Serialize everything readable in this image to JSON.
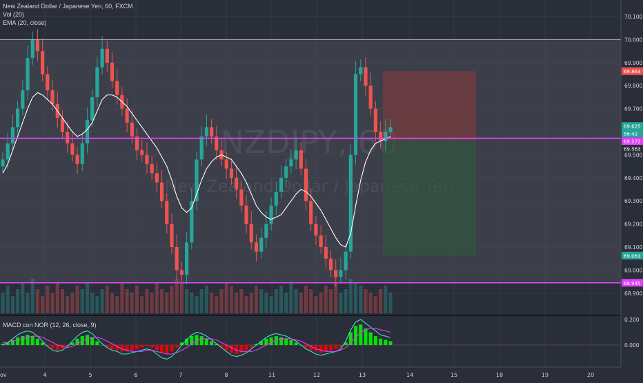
{
  "header": {
    "title": "New Zealand Dollar / Japanese Yen, 60, FXCM",
    "indicator_vol": "Vol (20)",
    "indicator_ema": "EMA (20, close)"
  },
  "watermark": {
    "symbol": "NZDJPY, 60",
    "name": "New Zealand Dollar / Japanese Yen"
  },
  "macd_panel": {
    "label": "MACD con NOR (12, 26, close, 9)"
  },
  "colors": {
    "background": "#2a2e39",
    "up_candle": "#26a69a",
    "down_candle": "#ef5350",
    "range_box": "#4a4e5a",
    "support_resistance": "#e040fb",
    "ema": "#ffffff",
    "macd_line": "#40e0d0",
    "signal_line": "#e040fb",
    "hist_pos": "#00ff00",
    "hist_neg": "#ff0000",
    "position_stop": "#8b3a3a",
    "position_target": "#2e5a3e"
  },
  "chart_data": [
    {
      "type": "candlestick",
      "title": "New Zealand Dollar / Japanese Yen, 60, FXCM",
      "x_tick_labels": [
        "ov",
        "4",
        "5",
        "6",
        "7",
        "8",
        "11",
        "12",
        "13",
        "14",
        "15",
        "18",
        "19",
        "20"
      ],
      "y_tick_labels": [
        "70.100",
        "70.000",
        "69.900",
        "69.800",
        "69.700",
        "69.600",
        "69.500",
        "69.400",
        "69.300",
        "69.200",
        "69.100",
        "69.000",
        "68.900"
      ],
      "ylim": [
        68.86,
        70.15
      ],
      "grid": true,
      "lines": [
        {
          "name": "range-top",
          "value": 70.0
        },
        {
          "name": "resistance",
          "value": 69.572
        },
        {
          "name": "support",
          "value": 68.945
        }
      ],
      "price_labels": [
        {
          "text": "69.863",
          "value": 69.863,
          "color": "#ef5350"
        },
        {
          "text": "69.625",
          "value": 69.625,
          "color": "#26a69a"
        },
        {
          "text": "56:42",
          "value": 69.598,
          "color": "#26a69a"
        },
        {
          "text": "69.572",
          "value": 69.572,
          "color": "#e040fb"
        },
        {
          "text": "69.563",
          "value": 69.563,
          "color": "#2a2e39"
        },
        {
          "text": "69.063",
          "value": 69.063,
          "color": "#26a69a"
        },
        {
          "text": "68.945",
          "value": 68.945,
          "color": "#e040fb"
        }
      ],
      "close_path": [
        69.48,
        69.55,
        69.62,
        69.7,
        69.78,
        69.92,
        70.0,
        69.95,
        69.85,
        69.78,
        69.72,
        69.66,
        69.6,
        69.55,
        69.5,
        69.46,
        69.55,
        69.65,
        69.75,
        69.88,
        69.96,
        69.9,
        69.82,
        69.76,
        69.7,
        69.64,
        69.58,
        69.52,
        69.5,
        69.46,
        69.42,
        69.38,
        69.3,
        69.2,
        69.1,
        69.0,
        68.98,
        69.12,
        69.3,
        69.48,
        69.58,
        69.62,
        69.58,
        69.52,
        69.48,
        69.44,
        69.4,
        69.35,
        69.28,
        69.2,
        69.12,
        69.08,
        69.14,
        69.2,
        69.28,
        69.34,
        69.4,
        69.45,
        69.48,
        69.52,
        69.44,
        69.3,
        69.2,
        69.15,
        69.1,
        69.05,
        69.0,
        68.97,
        69.0,
        69.08,
        69.5,
        69.85,
        69.88,
        69.8,
        69.7,
        69.6,
        69.56,
        69.6,
        69.62
      ],
      "ema_path": [
        69.42,
        69.46,
        69.52,
        69.58,
        69.64,
        69.7,
        69.75,
        69.77,
        69.76,
        69.74,
        69.72,
        69.69,
        69.66,
        69.63,
        69.6,
        69.58,
        69.59,
        69.61,
        69.64,
        69.69,
        69.74,
        69.76,
        69.76,
        69.75,
        69.73,
        69.71,
        69.68,
        69.65,
        69.62,
        69.59,
        69.56,
        69.53,
        69.49,
        69.45,
        69.39,
        69.32,
        69.27,
        69.25,
        69.27,
        69.33,
        69.39,
        69.44,
        69.47,
        69.49,
        69.5,
        69.49,
        69.48,
        69.45,
        69.42,
        69.38,
        69.33,
        69.28,
        69.25,
        69.23,
        69.22,
        69.23,
        69.24,
        69.27,
        69.3,
        69.33,
        69.35,
        69.34,
        69.32,
        69.29,
        69.26,
        69.22,
        69.18,
        69.14,
        69.11,
        69.1,
        69.16,
        69.28,
        69.39,
        69.47,
        69.52,
        69.55,
        69.56,
        69.57,
        69.58
      ],
      "position_box": {
        "entry": 69.563,
        "stop": 69.863,
        "target": 69.063
      }
    },
    {
      "type": "bar",
      "title": "Vol (20)",
      "values": [
        0.6,
        0.8,
        0.5,
        0.7,
        0.9,
        0.6,
        1.0,
        0.7,
        0.5,
        0.8,
        0.6,
        0.9,
        0.7,
        0.5,
        0.6,
        0.8,
        0.7,
        0.9,
        0.6,
        0.5,
        0.7,
        0.8,
        0.6,
        0.5,
        0.9,
        0.7,
        0.6,
        0.8,
        0.5,
        0.7,
        0.6,
        0.9,
        0.7,
        0.6,
        0.8,
        1.0,
        0.9,
        0.7,
        0.6,
        0.5,
        0.7,
        0.8,
        0.6,
        0.5,
        0.7,
        0.9,
        0.8,
        0.6,
        0.7,
        0.5,
        0.6,
        0.8,
        0.7,
        0.6,
        0.5,
        0.7,
        0.8,
        0.6,
        0.9,
        0.7,
        0.6,
        0.8,
        0.7,
        0.5,
        0.6,
        0.8,
        0.7,
        0.9,
        0.6,
        0.7,
        1.0,
        0.9,
        0.8,
        0.7,
        0.6,
        0.5,
        0.7,
        0.8,
        0.6
      ]
    },
    {
      "type": "bar",
      "title": "MACD con NOR (12, 26, close, 9)",
      "y_tick_labels": [
        "0.200",
        "0.000"
      ],
      "ylim": [
        -0.16,
        0.22
      ],
      "histogram": [
        0.01,
        0.02,
        0.04,
        0.06,
        0.07,
        0.08,
        0.07,
        0.05,
        0.02,
        -0.01,
        -0.03,
        -0.04,
        -0.03,
        -0.01,
        0.02,
        0.05,
        0.07,
        0.08,
        0.06,
        0.03,
        0.0,
        -0.02,
        -0.03,
        -0.04,
        -0.05,
        -0.05,
        -0.04,
        -0.03,
        -0.02,
        -0.01,
        -0.02,
        -0.04,
        -0.06,
        -0.07,
        -0.05,
        -0.02,
        0.02,
        0.05,
        0.07,
        0.08,
        0.07,
        0.05,
        0.03,
        0.01,
        -0.02,
        -0.04,
        -0.06,
        -0.07,
        -0.06,
        -0.04,
        -0.02,
        0.01,
        0.03,
        0.05,
        0.06,
        0.07,
        0.06,
        0.05,
        0.04,
        0.02,
        0.0,
        -0.02,
        -0.04,
        -0.05,
        -0.06,
        -0.05,
        -0.04,
        -0.03,
        -0.02,
        0.02,
        0.1,
        0.15,
        0.16,
        0.13,
        0.1,
        0.07,
        0.05,
        0.04,
        0.03
      ],
      "macd_line": [
        0.0,
        0.02,
        0.05,
        0.08,
        0.1,
        0.11,
        0.1,
        0.07,
        0.03,
        -0.01,
        -0.04,
        -0.05,
        -0.04,
        -0.01,
        0.03,
        0.07,
        0.1,
        0.11,
        0.09,
        0.05,
        0.01,
        -0.02,
        -0.04,
        -0.05,
        -0.07,
        -0.07,
        -0.06,
        -0.05,
        -0.04,
        -0.03,
        -0.04,
        -0.07,
        -0.1,
        -0.11,
        -0.09,
        -0.05,
        0.0,
        0.04,
        0.08,
        0.1,
        0.09,
        0.07,
        0.04,
        0.01,
        -0.02,
        -0.05,
        -0.08,
        -0.09,
        -0.08,
        -0.06,
        -0.03,
        0.0,
        0.03,
        0.06,
        0.08,
        0.09,
        0.08,
        0.07,
        0.05,
        0.03,
        0.0,
        -0.03,
        -0.05,
        -0.07,
        -0.08,
        -0.07,
        -0.06,
        -0.05,
        -0.03,
        0.03,
        0.12,
        0.18,
        0.2,
        0.17,
        0.14,
        0.11,
        0.08,
        0.07,
        0.06
      ],
      "signal_line": [
        0.02,
        0.02,
        0.03,
        0.04,
        0.05,
        0.06,
        0.07,
        0.07,
        0.06,
        0.04,
        0.02,
        0.0,
        -0.01,
        -0.02,
        -0.01,
        0.01,
        0.03,
        0.05,
        0.06,
        0.06,
        0.05,
        0.03,
        0.01,
        -0.01,
        -0.03,
        -0.04,
        -0.05,
        -0.05,
        -0.05,
        -0.04,
        -0.04,
        -0.05,
        -0.06,
        -0.07,
        -0.07,
        -0.06,
        -0.04,
        -0.02,
        0.01,
        0.03,
        0.05,
        0.05,
        0.05,
        0.04,
        0.02,
        0.0,
        -0.02,
        -0.04,
        -0.05,
        -0.05,
        -0.05,
        -0.04,
        -0.02,
        0.0,
        0.02,
        0.04,
        0.05,
        0.05,
        0.05,
        0.04,
        0.03,
        0.01,
        -0.01,
        -0.03,
        -0.04,
        -0.05,
        -0.05,
        -0.05,
        -0.04,
        -0.02,
        0.02,
        0.06,
        0.1,
        0.12,
        0.13,
        0.13,
        0.12,
        0.11,
        0.1
      ]
    }
  ]
}
